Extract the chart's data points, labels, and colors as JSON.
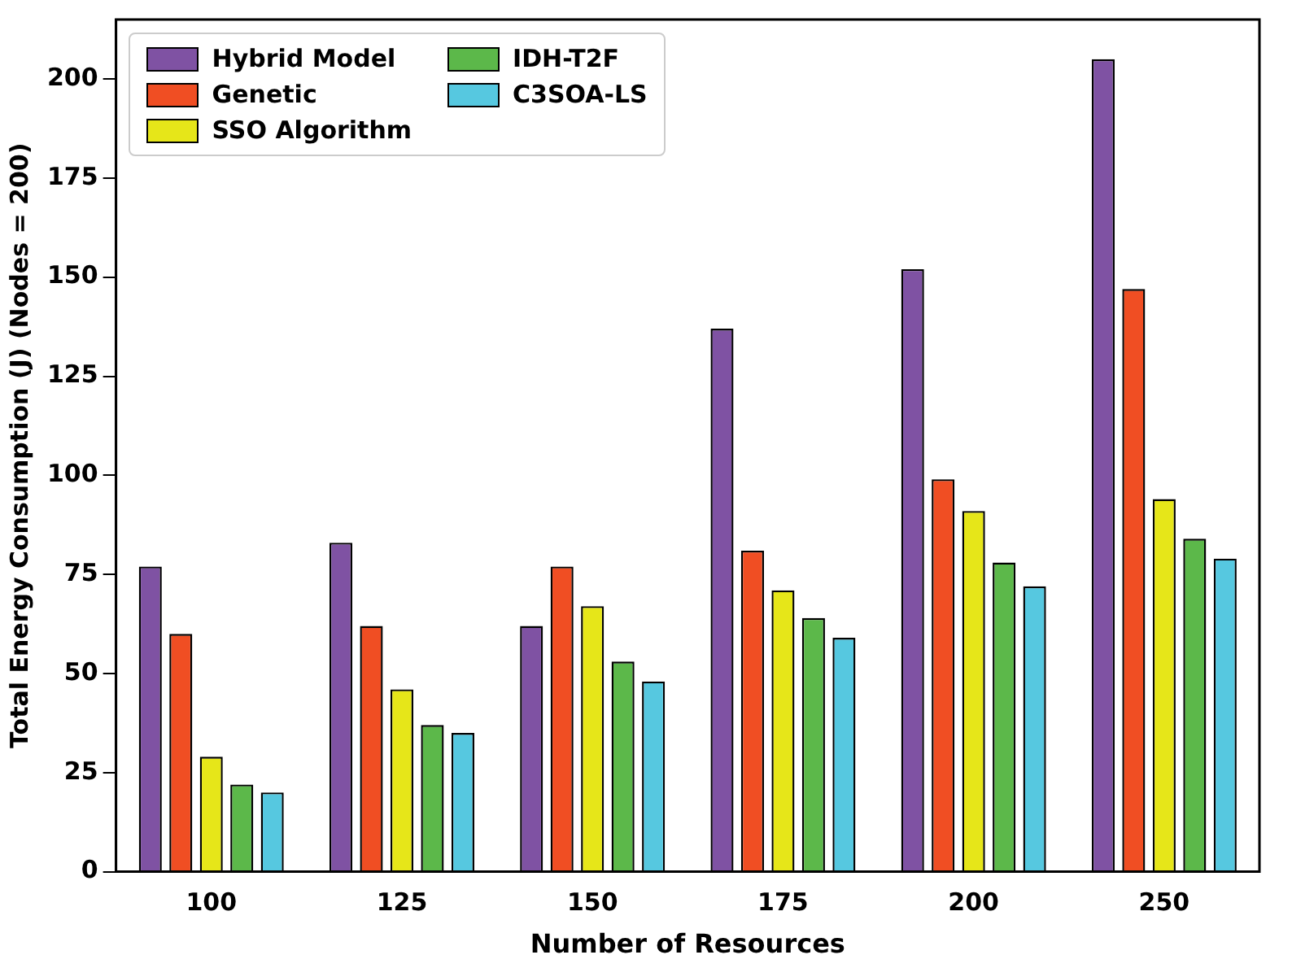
{
  "chart_data": {
    "type": "bar",
    "xlabel": "Number of Resources",
    "ylabel": "Total Energy Consumption (J) (Nodes = 200)",
    "categories": [
      "100",
      "125",
      "150",
      "175",
      "200",
      "250"
    ],
    "series": [
      {
        "name": "Hybrid Model",
        "color": "#7f52a3",
        "values": [
          77,
          83,
          62,
          137,
          152,
          205
        ]
      },
      {
        "name": "Genetic",
        "color": "#f04e23",
        "values": [
          60,
          62,
          77,
          81,
          99,
          147
        ]
      },
      {
        "name": "SSO Algorithm",
        "color": "#e6e619",
        "values": [
          29,
          46,
          67,
          71,
          91,
          94
        ]
      },
      {
        "name": "IDH-T2F",
        "color": "#5cb84a",
        "values": [
          22,
          37,
          53,
          64,
          78,
          84
        ]
      },
      {
        "name": "C3SOA-LS",
        "color": "#56c8e0",
        "values": [
          20,
          35,
          48,
          59,
          72,
          79
        ]
      }
    ],
    "ylim": [
      0,
      215
    ],
    "yticks": [
      0,
      25,
      50,
      75,
      100,
      125,
      150,
      175,
      200
    ],
    "grid": false,
    "legend": "top left"
  }
}
